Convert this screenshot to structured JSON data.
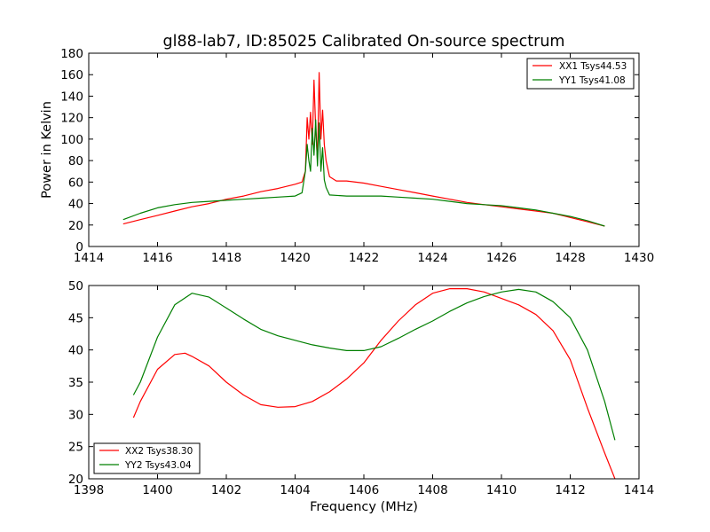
{
  "chart_data": [
    {
      "type": "line",
      "title": "gl88-lab7, ID:85025 Calibrated On-source spectrum",
      "xlabel": "",
      "ylabel": "Power in Kelvin",
      "xlim": [
        1414,
        1430
      ],
      "ylim": [
        0,
        180
      ],
      "xticks": [
        1414,
        1416,
        1418,
        1420,
        1422,
        1424,
        1426,
        1428,
        1430
      ],
      "yticks": [
        0,
        20,
        40,
        60,
        80,
        100,
        120,
        140,
        160,
        180
      ],
      "grid": false,
      "legend_position": "top-right",
      "series": [
        {
          "name": "XX1 Tsys44.53",
          "color": "#ff0000",
          "points": [
            [
              1415.0,
              21
            ],
            [
              1415.5,
              25
            ],
            [
              1416.0,
              29
            ],
            [
              1416.5,
              33
            ],
            [
              1417.0,
              37
            ],
            [
              1417.5,
              40
            ],
            [
              1418.0,
              44
            ],
            [
              1418.5,
              47
            ],
            [
              1419.0,
              51
            ],
            [
              1419.5,
              54
            ],
            [
              1420.0,
              58
            ],
            [
              1420.2,
              60
            ],
            [
              1420.3,
              70
            ],
            [
              1420.35,
              120
            ],
            [
              1420.4,
              100
            ],
            [
              1420.45,
              125
            ],
            [
              1420.5,
              95
            ],
            [
              1420.55,
              155
            ],
            [
              1420.6,
              110
            ],
            [
              1420.65,
              80
            ],
            [
              1420.7,
              162
            ],
            [
              1420.75,
              100
            ],
            [
              1420.8,
              127
            ],
            [
              1420.85,
              95
            ],
            [
              1420.9,
              80
            ],
            [
              1421.0,
              65
            ],
            [
              1421.2,
              61
            ],
            [
              1421.5,
              61
            ],
            [
              1422.0,
              59
            ],
            [
              1422.5,
              56
            ],
            [
              1423.0,
              53
            ],
            [
              1423.5,
              50
            ],
            [
              1424.0,
              47
            ],
            [
              1424.5,
              44
            ],
            [
              1425.0,
              41
            ],
            [
              1425.5,
              39
            ],
            [
              1426.0,
              37
            ],
            [
              1426.5,
              35
            ],
            [
              1427.0,
              33
            ],
            [
              1427.5,
              31
            ],
            [
              1428.0,
              27
            ],
            [
              1428.5,
              23
            ],
            [
              1429.0,
              19
            ]
          ]
        },
        {
          "name": "YY1 Tsys41.08",
          "color": "#007f00",
          "points": [
            [
              1415.0,
              25
            ],
            [
              1415.5,
              31
            ],
            [
              1416.0,
              36
            ],
            [
              1416.5,
              39
            ],
            [
              1417.0,
              41
            ],
            [
              1417.5,
              42
            ],
            [
              1418.0,
              43
            ],
            [
              1418.5,
              44
            ],
            [
              1419.0,
              45
            ],
            [
              1419.5,
              46
            ],
            [
              1420.0,
              47
            ],
            [
              1420.2,
              50
            ],
            [
              1420.3,
              70
            ],
            [
              1420.35,
              95
            ],
            [
              1420.4,
              80
            ],
            [
              1420.45,
              70
            ],
            [
              1420.5,
              110
            ],
            [
              1420.55,
              85
            ],
            [
              1420.6,
              118
            ],
            [
              1420.65,
              75
            ],
            [
              1420.7,
              115
            ],
            [
              1420.75,
              70
            ],
            [
              1420.8,
              92
            ],
            [
              1420.85,
              62
            ],
            [
              1420.9,
              55
            ],
            [
              1421.0,
              48
            ],
            [
              1421.5,
              47
            ],
            [
              1422.0,
              47
            ],
            [
              1422.5,
              47
            ],
            [
              1423.0,
              46
            ],
            [
              1423.5,
              45
            ],
            [
              1424.0,
              44
            ],
            [
              1424.5,
              42
            ],
            [
              1425.0,
              40
            ],
            [
              1425.5,
              39
            ],
            [
              1426.0,
              38
            ],
            [
              1426.5,
              36
            ],
            [
              1427.0,
              34
            ],
            [
              1427.5,
              31
            ],
            [
              1428.0,
              28
            ],
            [
              1428.5,
              24
            ],
            [
              1429.0,
              19
            ]
          ]
        }
      ]
    },
    {
      "type": "line",
      "title": "",
      "xlabel": "Frequency (MHz)",
      "ylabel": "",
      "xlim": [
        1398,
        1414
      ],
      "ylim": [
        20,
        50
      ],
      "xticks": [
        1398,
        1400,
        1402,
        1404,
        1406,
        1408,
        1410,
        1412,
        1414
      ],
      "yticks": [
        20,
        25,
        30,
        35,
        40,
        45,
        50
      ],
      "grid": false,
      "legend_position": "bottom-left",
      "series": [
        {
          "name": "XX2 Tsys38.30",
          "color": "#ff0000",
          "points": [
            [
              1399.3,
              29.5
            ],
            [
              1399.5,
              32
            ],
            [
              1400.0,
              37
            ],
            [
              1400.5,
              39.3
            ],
            [
              1400.8,
              39.5
            ],
            [
              1401.0,
              39
            ],
            [
              1401.5,
              37.5
            ],
            [
              1402.0,
              35
            ],
            [
              1402.5,
              33
            ],
            [
              1403.0,
              31.5
            ],
            [
              1403.5,
              31.1
            ],
            [
              1404.0,
              31.2
            ],
            [
              1404.5,
              32
            ],
            [
              1405.0,
              33.5
            ],
            [
              1405.5,
              35.5
            ],
            [
              1406.0,
              38
            ],
            [
              1406.5,
              41.5
            ],
            [
              1407.0,
              44.5
            ],
            [
              1407.5,
              47
            ],
            [
              1408.0,
              48.8
            ],
            [
              1408.5,
              49.5
            ],
            [
              1409.0,
              49.5
            ],
            [
              1409.5,
              49
            ],
            [
              1410.0,
              48
            ],
            [
              1410.5,
              47
            ],
            [
              1411.0,
              45.5
            ],
            [
              1411.5,
              43
            ],
            [
              1412.0,
              38.5
            ],
            [
              1412.5,
              31
            ],
            [
              1413.0,
              24
            ],
            [
              1413.3,
              20
            ]
          ]
        },
        {
          "name": "YY2 Tsys43.04",
          "color": "#007f00",
          "points": [
            [
              1399.3,
              33
            ],
            [
              1399.5,
              35
            ],
            [
              1400.0,
              42
            ],
            [
              1400.5,
              47
            ],
            [
              1401.0,
              48.8
            ],
            [
              1401.5,
              48.2
            ],
            [
              1402.0,
              46.5
            ],
            [
              1402.5,
              44.8
            ],
            [
              1403.0,
              43.2
            ],
            [
              1403.5,
              42.2
            ],
            [
              1404.0,
              41.5
            ],
            [
              1404.5,
              40.8
            ],
            [
              1405.0,
              40.3
            ],
            [
              1405.5,
              39.9
            ],
            [
              1406.0,
              39.9
            ],
            [
              1406.5,
              40.5
            ],
            [
              1407.0,
              41.8
            ],
            [
              1407.5,
              43.2
            ],
            [
              1408.0,
              44.5
            ],
            [
              1408.5,
              46
            ],
            [
              1409.0,
              47.3
            ],
            [
              1409.5,
              48.3
            ],
            [
              1410.0,
              49
            ],
            [
              1410.5,
              49.4
            ],
            [
              1411.0,
              49
            ],
            [
              1411.5,
              47.5
            ],
            [
              1412.0,
              45
            ],
            [
              1412.5,
              40
            ],
            [
              1413.0,
              32
            ],
            [
              1413.3,
              26
            ]
          ]
        }
      ]
    }
  ]
}
